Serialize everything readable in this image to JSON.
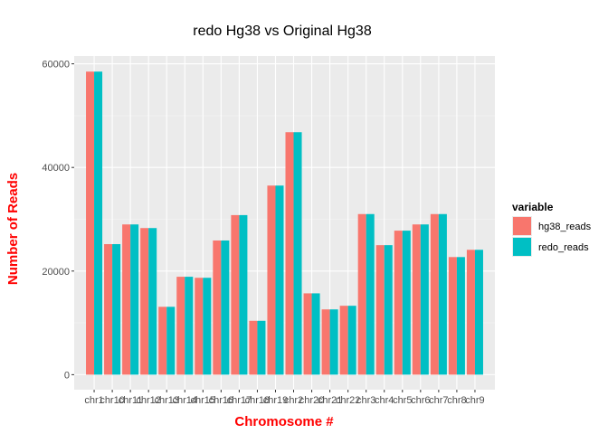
{
  "chart_data": {
    "type": "bar",
    "title": "redo Hg38 vs Original Hg38",
    "xlabel": "Chromosome #",
    "ylabel": "Number of Reads",
    "label_color": "#ff0000",
    "panel_background": "#ebebeb",
    "grid": true,
    "legend_position": "right",
    "legend_title": "variable",
    "ylim": [
      -2900,
      61500
    ],
    "yticks": [
      0,
      20000,
      40000,
      60000
    ],
    "ytick_labels": [
      "0",
      "20000",
      "40000",
      "60000"
    ],
    "categories": [
      "chr1",
      "chr10",
      "chr11",
      "chr12",
      "chr13",
      "chr14",
      "chr15",
      "chr16",
      "chr17",
      "chr18",
      "chr19",
      "chr2",
      "chr20",
      "chr21",
      "chr22",
      "chr3",
      "chr4",
      "chr5",
      "chr6",
      "chr7",
      "chr8",
      "chr9"
    ],
    "series": [
      {
        "name": "hg38_reads",
        "color": "#f8766d",
        "values": [
          58500,
          25200,
          29000,
          28300,
          13100,
          18900,
          18700,
          25900,
          30800,
          10400,
          36500,
          46800,
          15700,
          12600,
          13300,
          31000,
          25000,
          27800,
          29000,
          31000,
          22700,
          24100
        ]
      },
      {
        "name": "redo_reads",
        "color": "#00bfc4",
        "values": [
          58500,
          25200,
          29000,
          28300,
          13100,
          18900,
          18700,
          25900,
          30800,
          10400,
          36500,
          46800,
          15700,
          12600,
          13300,
          31000,
          25000,
          27800,
          29000,
          31000,
          22700,
          24100
        ]
      }
    ]
  }
}
